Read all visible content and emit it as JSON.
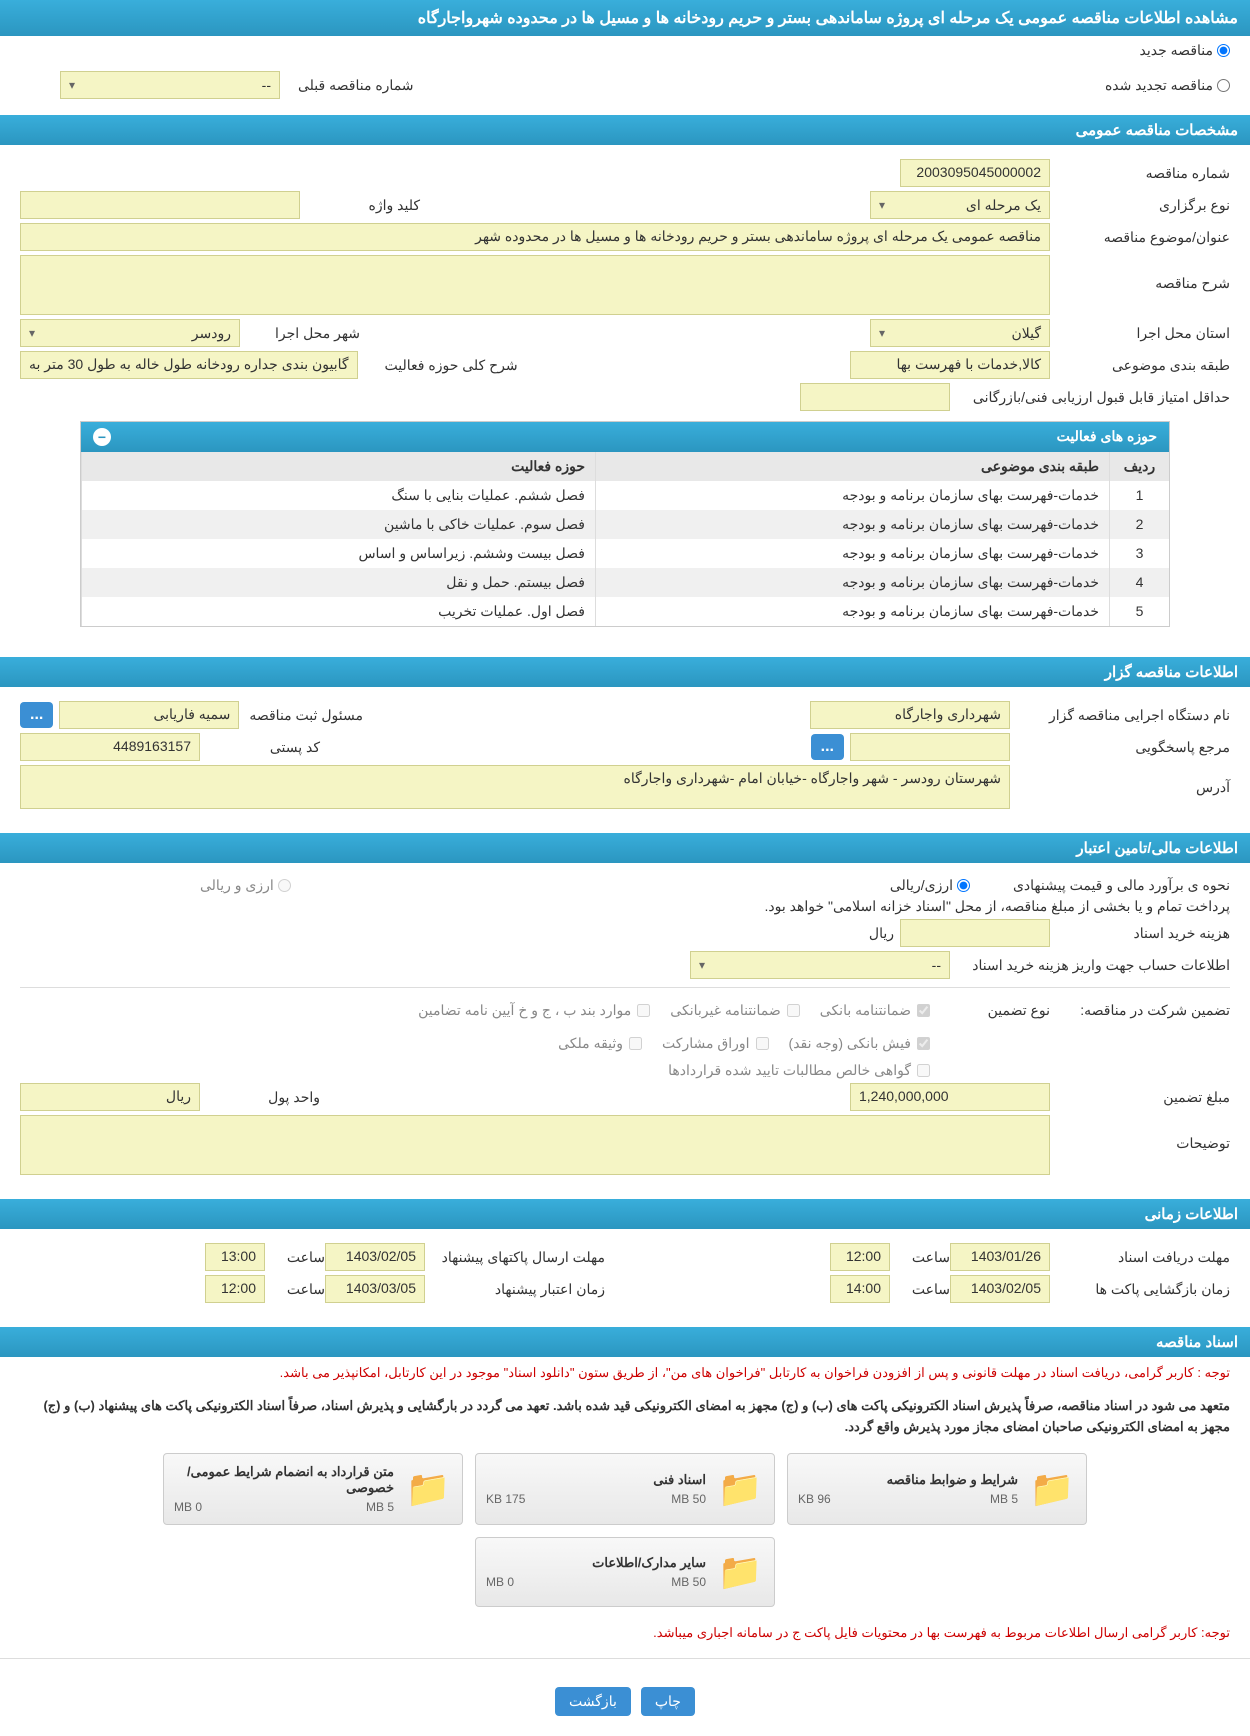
{
  "header": {
    "title": "مشاهده اطلاعات مناقصه عمومی یک مرحله ای پروژه ساماندهی بستر و حریم رودخانه ها و مسیل ها در محدوده شهرواجارگاه"
  },
  "tender_type": {
    "new_label": "مناقصه جدید",
    "renewed_label": "مناقصه تجدید شده",
    "prev_number_label": "شماره مناقصه قبلی",
    "prev_number_value": "--"
  },
  "sections": {
    "general": "مشخصات مناقصه عمومی",
    "activity_areas": "حوزه های فعالیت",
    "organizer": "اطلاعات مناقصه گزار",
    "financial": "اطلاعات مالی/تامین اعتبار",
    "timing": "اطلاعات زمانی",
    "documents": "اسناد مناقصه"
  },
  "general": {
    "tender_number_label": "شماره مناقصه",
    "tender_number": "2003095045000002",
    "keyword_label": "کلید واژه",
    "keyword": "",
    "holding_type_label": "نوع برگزاری",
    "holding_type": "یک مرحله ای",
    "subject_label": "عنوان/موضوع مناقصه",
    "subject": "مناقصه عمومی یک مرحله ای پروژه ساماندهی بستر و حریم رودخانه ها و مسیل ها در محدوده شهر",
    "description_label": "شرح مناقصه",
    "description": "",
    "province_label": "استان محل اجرا",
    "province": "گیلان",
    "city_label": "شهر محل اجرا",
    "city": "رودسر",
    "category_label": "طبقه بندی موضوعی",
    "category": "کالا,خدمات با فهرست بها",
    "scope_desc_label": "شرح کلی حوزه فعالیت",
    "scope_desc": "گابیون بندی جداره رودخانه طول خاله به طول  30 متر به",
    "min_score_label": "حداقل امتیاز قابل قبول ارزیابی فنی/بازرگانی",
    "min_score": ""
  },
  "activity_table": {
    "col_idx": "ردیف",
    "col_category": "طبقه بندی موضوعی",
    "col_activity": "حوزه فعالیت",
    "rows": [
      {
        "idx": "1",
        "category": "خدمات-فهرست بهای سازمان برنامه و بودجه",
        "activity": "فصل ششم. عملیات بنایی با سنگ"
      },
      {
        "idx": "2",
        "category": "خدمات-فهرست بهای سازمان برنامه و بودجه",
        "activity": "فصل سوم. عملیات خاکی با ماشین"
      },
      {
        "idx": "3",
        "category": "خدمات-فهرست بهای سازمان برنامه و بودجه",
        "activity": "فصل بیست وششم. زیراساس و اساس"
      },
      {
        "idx": "4",
        "category": "خدمات-فهرست بهای سازمان برنامه و بودجه",
        "activity": "فصل بیستم. حمل و نقل"
      },
      {
        "idx": "5",
        "category": "خدمات-فهرست بهای سازمان برنامه و بودجه",
        "activity": "فصل اول. عملیات تخریب"
      }
    ]
  },
  "organizer": {
    "executor_label": "نام دستگاه اجرایی مناقصه گزار",
    "executor": "شهرداری واجارگاه",
    "registrar_label": "مسئول ثبت مناقصه",
    "registrar": "سمیه فاریابی",
    "responder_label": "مرجع پاسخگویی",
    "responder": "",
    "postal_label": "کد پستی",
    "postal": "4489163157",
    "address_label": "آدرس",
    "address": "شهرستان رودسر - شهر واجارگاه -خیابان امام -شهرداری واجارگاه"
  },
  "financial": {
    "estimate_label": "نحوه ی برآورد مالی و قیمت پیشنهادی",
    "rial_option": "ارزی/ریالی",
    "currency_option": "ارزی و ریالی",
    "treasury_note": "پرداخت تمام و یا بخشی از مبلغ مناقصه، از محل \"اسناد خزانه اسلامی\" خواهد بود.",
    "doc_cost_label": "هزینه خرید اسناد",
    "doc_cost_unit": "ریال",
    "doc_cost": "",
    "account_label": "اطلاعات حساب جهت واریز هزینه خرید اسناد",
    "account_value": "--",
    "guarantee_label": "تضمین شرکت در مناقصه:",
    "guarantee_type_label": "نوع تضمین",
    "guarantee_types": {
      "bank": "ضمانتنامه بانکی",
      "nonbank": "ضمانتنامه غیربانکی",
      "terms": "موارد بند ب ، ج و خ آیین نامه تضامین",
      "cash": "فیش بانکی (وجه نقد)",
      "shares": "اوراق مشارکت",
      "property": "وثیقه ملکی",
      "contracts": "گواهی خالص مطالبات تایید شده قراردادها"
    },
    "guarantee_amount_label": "مبلغ تضمین",
    "guarantee_amount": "1,240,000,000",
    "money_unit_label": "واحد پول",
    "money_unit": "ریال",
    "notes_label": "توضیحات",
    "notes": ""
  },
  "timing": {
    "receive_label": "مهلت دریافت اسناد",
    "receive_date": "1403/01/26",
    "receive_time": "12:00",
    "time_label": "ساعت",
    "packets_send_label": "مهلت ارسال پاکتهای پیشنهاد",
    "packets_send_date": "1403/02/05",
    "packets_send_time": "13:00",
    "open_label": "زمان بازگشایی پاکت ها",
    "open_date": "1403/02/05",
    "open_time": "14:00",
    "validity_label": "زمان اعتبار پیشنهاد",
    "validity_date": "1403/03/05",
    "validity_time": "12:00"
  },
  "documents": {
    "note1": "توجه : کاربر گرامی، دریافت اسناد در مهلت قانونی و پس از افزودن فراخوان به کارتابل \"فراخوان های من\"، از طریق ستون \"دانلود اسناد\" موجود در این کارتابل، امکانپذیر می باشد.",
    "note2": "متعهد می شود در اسناد مناقصه، صرفاً پذیرش اسناد الکترونیکی پاکت های (ب) و (ج) مجهز به امضای الکترونیکی قید شده باشد. تعهد می گردد در بارگشایی و پذیرش اسناد، صرفاً اسناد الکترونیکی پاکت های پیشنهاد (ب) و (ج) مجهز به امضای الکترونیکی صاحبان امضای مجاز مورد پذیرش واقع گردد.",
    "note3": "توجه: کاربر گرامی ارسال اطلاعات مربوط به فهرست بها در محتویات فایل پاکت ج در سامانه اجباری میباشد.",
    "cards": [
      {
        "title": "شرایط و ضوابط مناقصه",
        "size1": "96 KB",
        "size2": "5 MB"
      },
      {
        "title": "اسناد فنی",
        "size1": "175 KB",
        "size2": "50 MB"
      },
      {
        "title": "متن قرارداد به انضمام شرایط عمومی/خصوصی",
        "size1": "0 MB",
        "size2": "5 MB"
      },
      {
        "title": "سایر مدارک/اطلاعات",
        "size1": "0 MB",
        "size2": "50 MB"
      }
    ]
  },
  "buttons": {
    "print": "چاپ",
    "back": "بازگشت",
    "dots": "..."
  }
}
